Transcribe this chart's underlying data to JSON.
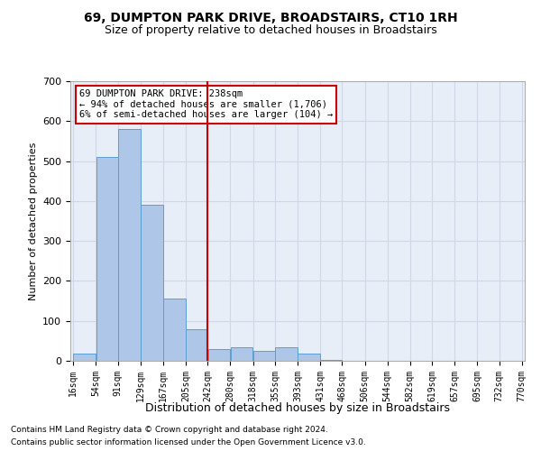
{
  "title1": "69, DUMPTON PARK DRIVE, BROADSTAIRS, CT10 1RH",
  "title2": "Size of property relative to detached houses in Broadstairs",
  "xlabel": "Distribution of detached houses by size in Broadstairs",
  "ylabel": "Number of detached properties",
  "footnote1": "Contains HM Land Registry data © Crown copyright and database right 2024.",
  "footnote2": "Contains public sector information licensed under the Open Government Licence v3.0.",
  "annotation_line1": "69 DUMPTON PARK DRIVE: 238sqm",
  "annotation_line2": "← 94% of detached houses are smaller (1,706)",
  "annotation_line3": "6% of semi-detached houses are larger (104) →",
  "bar_edges": [
    16,
    54,
    91,
    129,
    167,
    205,
    242,
    280,
    318,
    355,
    393,
    431,
    468,
    506,
    544,
    582,
    619,
    657,
    695,
    732,
    770
  ],
  "bar_heights": [
    18,
    510,
    580,
    390,
    155,
    80,
    30,
    35,
    25,
    35,
    18,
    3,
    0,
    0,
    0,
    0,
    0,
    0,
    0,
    0
  ],
  "bar_color": "#aec6e8",
  "bar_edge_color": "#5a9fd4",
  "vline_color": "#cc0000",
  "vline_x": 242,
  "grid_color": "#d0d8e8",
  "background_color": "#e8eef8",
  "annotation_box_color": "#ffffff",
  "annotation_box_edge": "#cc0000",
  "ylim": [
    0,
    700
  ],
  "yticks": [
    0,
    100,
    200,
    300,
    400,
    500,
    600,
    700
  ]
}
